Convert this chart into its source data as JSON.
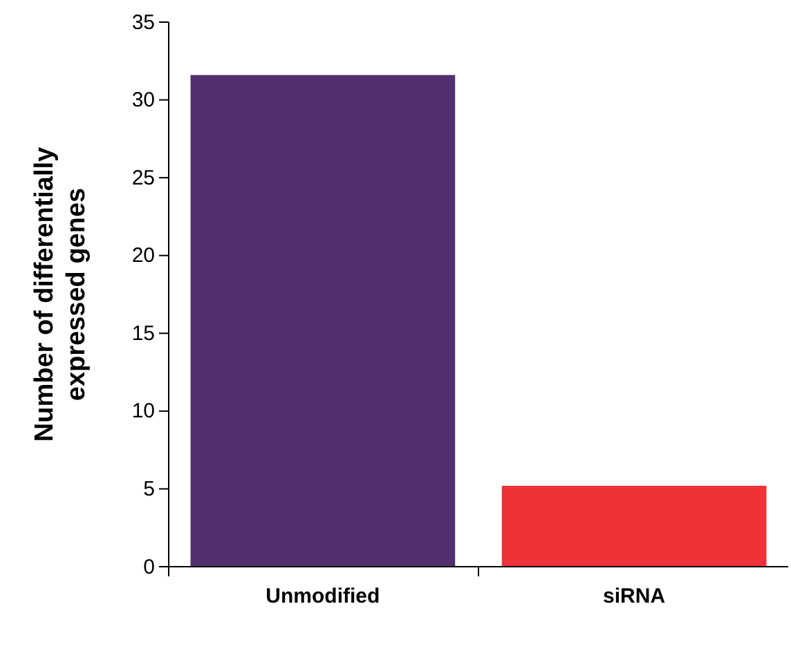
{
  "chart_data": {
    "type": "bar",
    "ylabel": "Number of differentially expressed genes",
    "categories": [
      "Unmodified",
      "siRNA"
    ],
    "values": [
      31.6,
      5.2
    ],
    "colors": [
      "#52306e",
      "#ee3237"
    ],
    "ylim": [
      0,
      35
    ],
    "yticks": [
      0,
      5,
      10,
      15,
      20,
      25,
      30,
      35
    ],
    "grid": false
  }
}
